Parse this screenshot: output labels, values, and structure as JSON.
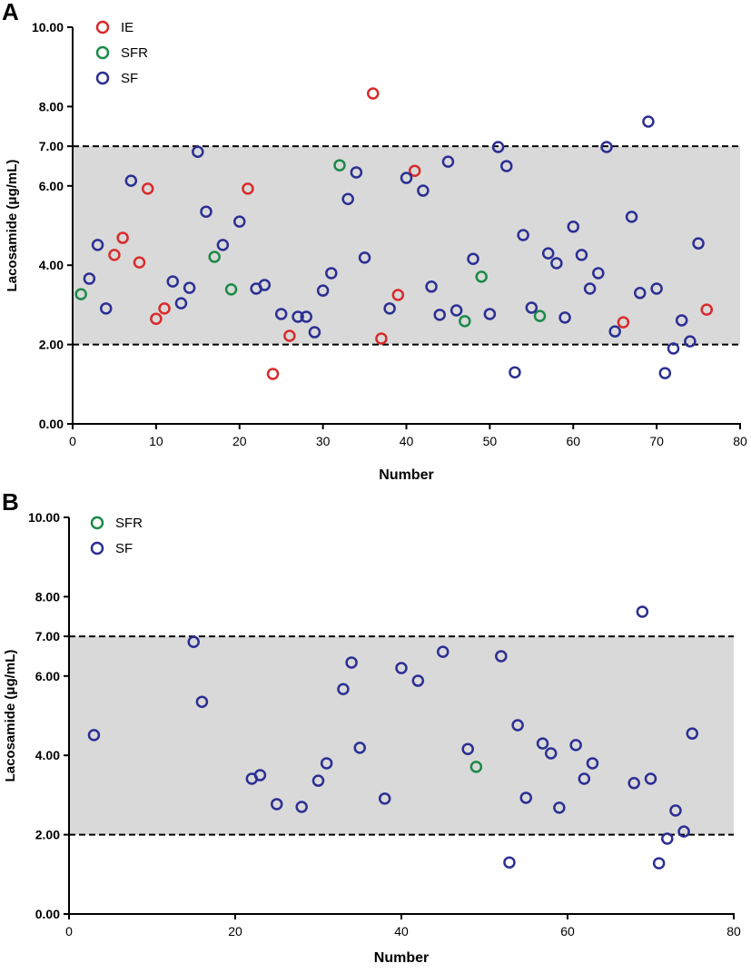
{
  "colors": {
    "IE": "#d92b2b",
    "SFR": "#1b8a47",
    "SF": "#2b2f93",
    "band": "#d9d9d9"
  },
  "chart_data": [
    {
      "panel_label": "A",
      "type": "scatter",
      "xlabel": "Number",
      "ylabel": "Lacosamide (μg/mL)",
      "xlim": [
        0,
        80
      ],
      "ylim": [
        0,
        10
      ],
      "xticks": [
        0,
        10,
        20,
        30,
        40,
        50,
        60,
        70,
        80
      ],
      "xtick_labels": [
        "0",
        "10",
        "20",
        "30",
        "40",
        "50",
        "60",
        "70",
        "80"
      ],
      "yticks": [
        0,
        2,
        4,
        6,
        7,
        8,
        10
      ],
      "ytick_labels": [
        "0.00",
        "2.00",
        "4.00",
        "6.00",
        "7.00",
        "8.00",
        "10.00"
      ],
      "reference_range": [
        2,
        7
      ],
      "legend": {
        "position": "top-left",
        "entries": [
          "IE",
          "SFR",
          "SF"
        ]
      },
      "series": [
        {
          "name": "IE",
          "x": [
            5,
            6,
            8,
            9,
            10,
            11,
            21,
            24,
            26,
            36,
            37,
            39,
            41,
            66,
            76
          ],
          "y": [
            4.26,
            4.69,
            4.07,
            5.93,
            2.65,
            2.91,
            5.93,
            1.26,
            2.22,
            8.33,
            2.15,
            3.25,
            6.38,
            2.56,
            2.88
          ]
        },
        {
          "name": "SFR",
          "x": [
            1,
            17,
            19,
            32,
            47,
            49,
            56
          ],
          "y": [
            3.27,
            4.21,
            3.39,
            6.52,
            2.59,
            3.71,
            2.72
          ]
        },
        {
          "name": "SF",
          "x": [
            2,
            3,
            4,
            7,
            12,
            13,
            14,
            15,
            16,
            18,
            20,
            22,
            23,
            25,
            27,
            28,
            29,
            30,
            31,
            33,
            34,
            35,
            38,
            40,
            42,
            43,
            44,
            45,
            46,
            48,
            50,
            51,
            52,
            53,
            54,
            55,
            57,
            58,
            59,
            60,
            61,
            62,
            63,
            64,
            65,
            67,
            68,
            69,
            70,
            71,
            72,
            73,
            74,
            75
          ],
          "y": [
            3.66,
            4.51,
            2.91,
            6.13,
            3.59,
            3.04,
            3.43,
            6.86,
            5.35,
            4.51,
            5.1,
            3.41,
            3.5,
            2.77,
            2.7,
            2.7,
            2.31,
            3.36,
            3.8,
            5.67,
            6.34,
            4.19,
            2.91,
            6.2,
            5.88,
            3.46,
            2.75,
            6.61,
            2.86,
            4.16,
            2.77,
            6.98,
            6.5,
            1.3,
            4.76,
            2.93,
            4.3,
            4.05,
            2.68,
            4.97,
            4.26,
            3.41,
            3.8,
            6.98,
            2.33,
            5.22,
            3.3,
            7.62,
            3.41,
            1.28,
            1.9,
            2.61,
            2.08,
            4.55
          ]
        }
      ]
    },
    {
      "panel_label": "B",
      "type": "scatter",
      "xlabel": "Number",
      "ylabel": "Lacosamide (μg/mL)",
      "xlim": [
        0,
        80
      ],
      "ylim": [
        0,
        10
      ],
      "xticks": [
        0,
        20,
        40,
        60,
        80
      ],
      "xtick_labels": [
        "0",
        "20",
        "40",
        "60",
        "80"
      ],
      "yticks": [
        0,
        2,
        4,
        6,
        7,
        8,
        10
      ],
      "ytick_labels": [
        "0.00",
        "2.00",
        "4.00",
        "6.00",
        "7.00",
        "8.00",
        "10.00"
      ],
      "reference_range": [
        2,
        7
      ],
      "legend": {
        "position": "top-left",
        "entries": [
          "SFR",
          "SF"
        ]
      },
      "series": [
        {
          "name": "SFR",
          "x": [
            49
          ],
          "y": [
            3.71
          ]
        },
        {
          "name": "SF",
          "x": [
            3,
            15,
            16,
            22,
            23,
            25,
            28,
            30,
            31,
            33,
            34,
            35,
            38,
            40,
            42,
            45,
            48,
            52,
            53,
            54,
            55,
            57,
            58,
            59,
            61,
            62,
            63,
            68,
            69,
            70,
            71,
            72,
            73,
            74,
            75
          ],
          "y": [
            4.51,
            6.86,
            5.35,
            3.41,
            3.5,
            2.77,
            2.7,
            3.36,
            3.8,
            5.67,
            6.34,
            4.19,
            2.91,
            6.2,
            5.88,
            6.61,
            4.16,
            6.5,
            1.3,
            4.76,
            2.93,
            4.3,
            4.05,
            2.68,
            4.26,
            3.41,
            3.8,
            3.3,
            7.62,
            3.41,
            1.28,
            1.9,
            2.61,
            2.08,
            4.55
          ]
        }
      ]
    }
  ]
}
